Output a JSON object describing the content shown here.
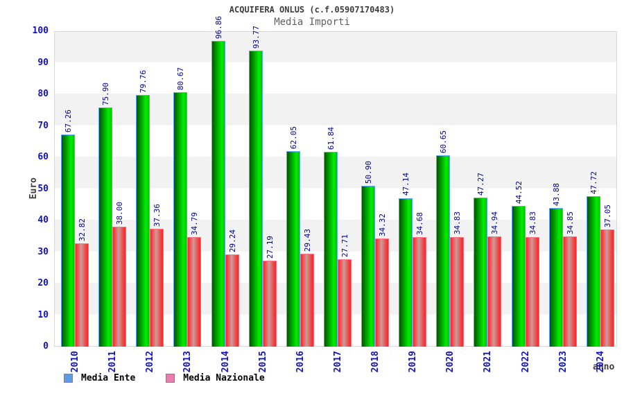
{
  "header": {
    "title": "ACQUIFERA ONLUS (c.f.05907170483)",
    "subtitle": "Media Importi"
  },
  "chart_data": {
    "type": "bar",
    "title": "ACQUIFERA ONLUS (c.f.05907170483)",
    "subtitle": "Media Importi",
    "categories": [
      "2010",
      "2011",
      "2012",
      "2013",
      "2014",
      "2015",
      "2016",
      "2017",
      "2018",
      "2019",
      "2020",
      "2021",
      "2022",
      "2023",
      "2024"
    ],
    "series": [
      {
        "name": "Media Ente",
        "values": [
          67.26,
          75.9,
          79.76,
          80.67,
          96.86,
          93.77,
          62.05,
          61.84,
          50.9,
          47.14,
          60.65,
          47.27,
          44.52,
          43.88,
          47.72
        ],
        "bar_color": "#00c400",
        "label_format": "2dp"
      },
      {
        "name": "Media Nazionale",
        "values": [
          32.82,
          38.0,
          37.36,
          34.79,
          29.24,
          27.19,
          29.43,
          27.71,
          34.32,
          34.68,
          34.83,
          34.94,
          34.83,
          34.85,
          37.05
        ],
        "bar_color": "#ff2424",
        "label_format": "2dp"
      }
    ],
    "xlabel": "anno",
    "ylabel": "Euro",
    "ylim": [
      0,
      100
    ],
    "yticks": [
      0,
      10,
      20,
      30,
      40,
      50,
      60,
      70,
      80,
      90,
      100
    ],
    "grid": "alternating-horizontal-bands",
    "legend_position": "bottom-left",
    "value_labels": "rotated-90-above-bars",
    "value_label_color": "#000099",
    "tick_label_color": "#1111cc"
  },
  "axes": {
    "ylabel": "Euro",
    "xlabel": "anno"
  },
  "legend": {
    "items": [
      {
        "label": "Media Ente",
        "swatch_color": "#5e9ce8"
      },
      {
        "label": "Media Nazionale",
        "swatch_color": "#ea7fae"
      }
    ]
  },
  "colors": {
    "band_gray": "#f2f2f2",
    "plot_border": "#d8d8d8",
    "green_bar_edge": "#025702",
    "green_bar_highlight": "#00ee00",
    "green_bar_border": "#5fa8f5",
    "red_bar_edge": "#ff2222",
    "red_bar_center": "#d09a9a",
    "red_bar_border": "#ff7083"
  }
}
